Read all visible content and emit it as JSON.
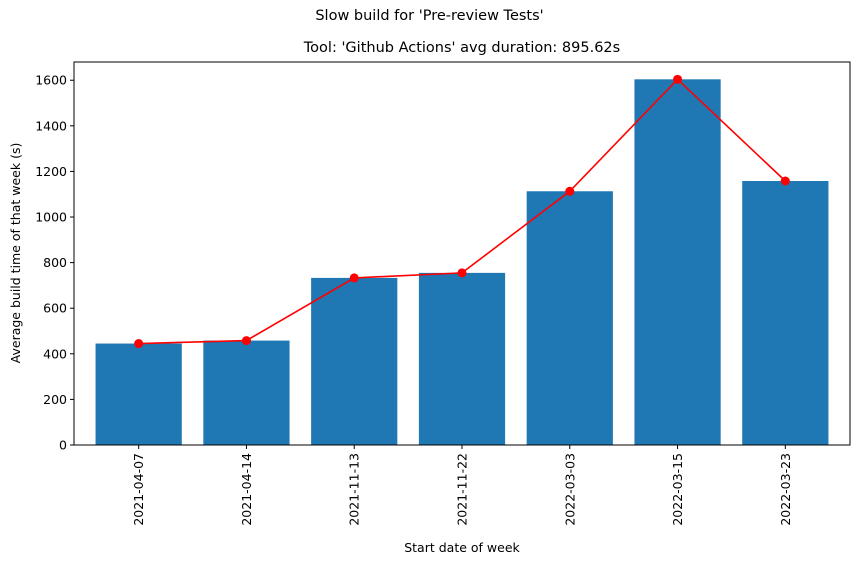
{
  "suptitle": "Slow build for 'Pre-review Tests'",
  "chart_data": {
    "type": "bar",
    "title": "Tool: 'Github Actions' avg duration: 895.62s",
    "xlabel": "Start date of week",
    "ylabel": "Average build time of that week (s)",
    "categories": [
      "2021-04-07",
      "2021-04-14",
      "2021-11-13",
      "2021-11-22",
      "2022-03-03",
      "2022-03-15",
      "2022-03-23"
    ],
    "values": [
      445,
      458,
      733,
      755,
      1113,
      1604,
      1158
    ],
    "ylim": [
      0,
      1680
    ],
    "yticks": [
      0,
      200,
      400,
      600,
      800,
      1000,
      1200,
      1400,
      1600
    ],
    "bar_color": "#1f77b4",
    "line_color": "#ff0000",
    "overlay": "line-with-markers-on-bar-tops",
    "grid": false,
    "legend": "none"
  }
}
